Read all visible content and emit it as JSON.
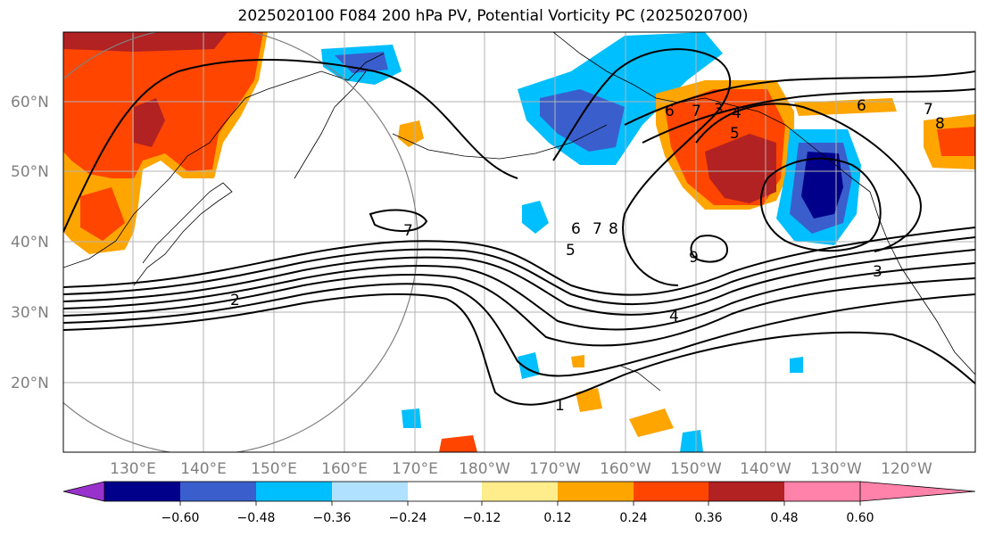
{
  "title": "2025020100 F084 200 hPa PV, Potential Vorticity PC (2025020700)",
  "lat_labels": [
    "60°N",
    "50°N",
    "40°N",
    "30°N",
    "20°N"
  ],
  "lon_labels": [
    "130°E",
    "140°E",
    "150°E",
    "160°E",
    "170°E",
    "180°W",
    "170°W",
    "160°W",
    "150°W",
    "140°W",
    "130°W",
    "120°W"
  ],
  "colorbar": {
    "ticks": [
      "−0.60",
      "−0.48",
      "−0.36",
      "−0.24",
      "−0.12",
      "0.12",
      "0.24",
      "0.36",
      "0.48",
      "0.60"
    ],
    "colors": [
      "#9932cc",
      "#00008b",
      "#3a5fcd",
      "#00bfff",
      "#b0e2ff",
      "#ffffff",
      "#ffec8b",
      "#ffa500",
      "#ff4500",
      "#b22222",
      "#ff82ab"
    ]
  },
  "contour_labels": [
    "2",
    "1",
    "7",
    "6",
    "7",
    "8",
    "5",
    "9",
    "4",
    "3",
    "3",
    "4",
    "5",
    "6",
    "7",
    "8",
    "6",
    "7"
  ]
}
